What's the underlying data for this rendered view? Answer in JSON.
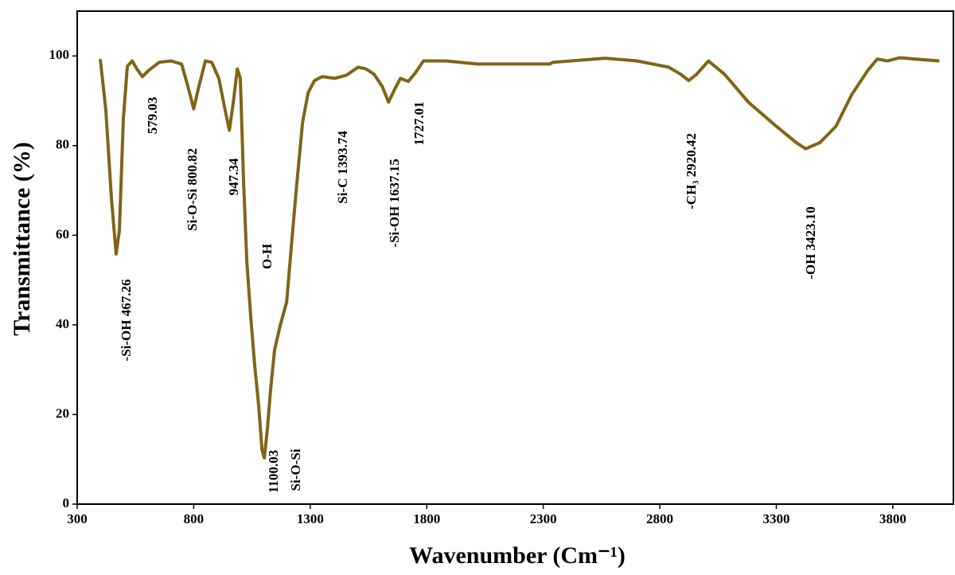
{
  "chart_data": {
    "type": "line",
    "xlabel": "Wavenumber (Cm⁻¹)",
    "ylabel": "Transmittance (%)",
    "xlim": [
      300,
      4060
    ],
    "ylim": [
      0,
      110
    ],
    "xticks": [
      300,
      800,
      1300,
      1800,
      2300,
      2800,
      3300,
      3800
    ],
    "yticks": [
      0,
      20,
      40,
      60,
      80,
      100
    ],
    "grid": false,
    "series": [
      {
        "name": null,
        "color": "#806517",
        "x": [
          399,
          423,
          447,
          467,
          481,
          498,
          515,
          536,
          556,
          580,
          607,
          652,
          703,
          748,
          775,
          800,
          822,
          850,
          877,
          908,
          935,
          953,
          970,
          987,
          1000,
          1014,
          1028,
          1045,
          1062,
          1079,
          1093,
          1103,
          1116,
          1130,
          1147,
          1171,
          1199,
          1222,
          1243,
          1267,
          1291,
          1318,
          1352,
          1404,
          1455,
          1506,
          1540,
          1574,
          1609,
          1636,
          1660,
          1687,
          1721,
          1752,
          1786,
          1882,
          2018,
          2326,
          2343,
          2565,
          2702,
          2838,
          2890,
          2924,
          2958,
          3009,
          3078,
          3180,
          3300,
          3385,
          3426,
          3488,
          3556,
          3624,
          3693,
          3733,
          3778,
          3829,
          3898,
          4000
        ],
        "values": [
          99.3,
          87.9,
          68.3,
          55.8,
          61,
          86,
          97.7,
          98.9,
          97.1,
          95.4,
          96.8,
          98.6,
          98.9,
          98.2,
          93.2,
          88.2,
          93.2,
          98.9,
          98.6,
          95,
          87.9,
          83.4,
          89.7,
          97.1,
          95,
          71.8,
          54,
          41.5,
          30.8,
          21.9,
          12.1,
          10.3,
          16.6,
          25.5,
          34.4,
          39.8,
          45.1,
          59.4,
          71.8,
          85.2,
          91.8,
          94.5,
          95.4,
          95,
          95.7,
          97.5,
          97.1,
          95.9,
          93.2,
          89.7,
          92.3,
          95,
          94.3,
          96.3,
          98.9,
          98.9,
          98.2,
          98.2,
          98.6,
          99.5,
          98.9,
          97.5,
          95.9,
          94.5,
          95.9,
          98.9,
          95.9,
          89.7,
          84.3,
          80.7,
          79.3,
          80.7,
          84.3,
          91.4,
          96.8,
          99.3,
          98.9,
          99.6,
          99.3,
          98.9
        ]
      }
    ],
    "annotations": [
      "-Si-OH  467.26",
      "579.03",
      "Si-O-Si  800.82",
      "947.34",
      "O-H",
      "1100.03",
      "Si-O-Si",
      "Si-C  1393.74",
      "-Si-OH  1637.15",
      "1727.01",
      "-CH₃  2920.42",
      "-OH  3423.10"
    ]
  }
}
